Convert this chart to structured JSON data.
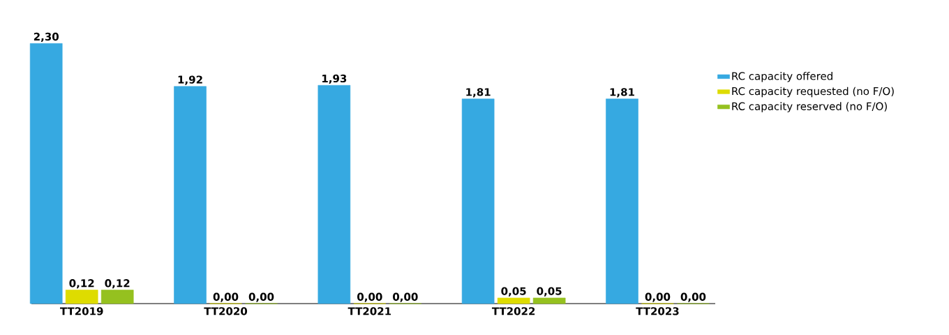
{
  "chart_data": {
    "type": "bar",
    "categories": [
      "TT2019",
      "TT2020",
      "TT2021",
      "TT2022",
      "TT2023"
    ],
    "series": [
      {
        "name": "RC capacity offered",
        "color": "#36a9e1",
        "values": [
          2.3,
          1.92,
          1.93,
          1.81,
          1.81
        ],
        "value_labels": [
          "2,30",
          "1,92",
          "1,93",
          "1,81",
          "1,81"
        ]
      },
      {
        "name": "RC capacity requested (no F/O)",
        "color": "#dedc00",
        "values": [
          0.12,
          0.0,
          0.0,
          0.05,
          0.0
        ],
        "value_labels": [
          "0,12",
          "0,00",
          "0,00",
          "0,05",
          "0,00"
        ]
      },
      {
        "name": "RC capacity reserved (no F/O)",
        "color": "#95c11f",
        "values": [
          0.12,
          0.0,
          0.0,
          0.05,
          0.0
        ],
        "value_labels": [
          "0,12",
          "0,00",
          "0,00",
          "0,05",
          "0,00"
        ]
      }
    ],
    "legend": "right"
  }
}
